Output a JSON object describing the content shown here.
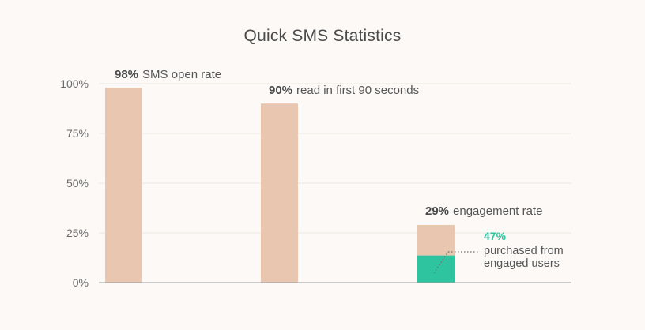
{
  "title": "Quick SMS Statistics",
  "colors": {
    "background": "#fdf9f6",
    "bar": "#e8c6b0",
    "highlight": "#2ec4a0",
    "grid": "#ece6e1",
    "axis": "#9a9a9a"
  },
  "chart_data": {
    "type": "bar",
    "title": "Quick SMS Statistics",
    "xlabel": "",
    "ylabel": "",
    "ylim": [
      0,
      100
    ],
    "yticks": [
      0,
      25,
      50,
      75,
      100
    ],
    "ytick_labels": [
      "0%",
      "25%",
      "50%",
      "75%",
      "100%"
    ],
    "grid": true,
    "categories": [
      "SMS open rate",
      "read in first 90 seconds",
      "engagement rate"
    ],
    "values": [
      98,
      90,
      29
    ],
    "value_labels": [
      "98%",
      "90%",
      "29%"
    ],
    "label_texts": [
      "SMS open rate",
      "read in first 90 seconds",
      "engagement rate"
    ],
    "sub_segment": {
      "bar_index": 2,
      "value_percent_of_bar": 47,
      "label_value": "47%",
      "label_lines": [
        "purchased from",
        "engaged users"
      ]
    }
  }
}
